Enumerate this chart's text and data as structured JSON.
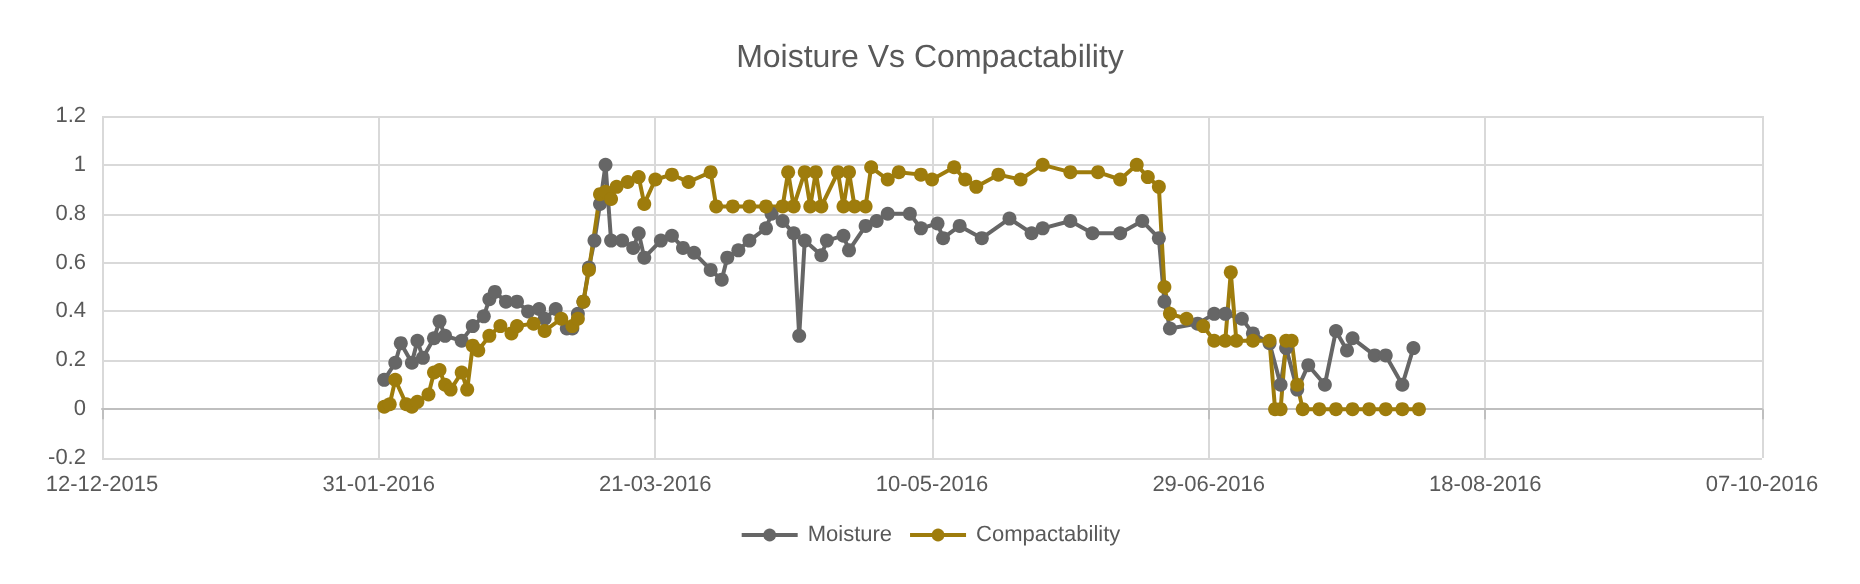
{
  "chart_data": {
    "type": "line",
    "title": "Moisture Vs Compactability",
    "marker": "circle",
    "line_style": "solid",
    "grid": true,
    "legend": "bottom",
    "xlim": [
      "2015-12-12",
      "2016-10-07"
    ],
    "xticks": [
      {
        "value": "2015-12-12",
        "label": "12-12-2015"
      },
      {
        "value": "2016-01-31",
        "label": "31-01-2016"
      },
      {
        "value": "2016-03-21",
        "label": "21-03-2016"
      },
      {
        "value": "2016-05-10",
        "label": "10-05-2016"
      },
      {
        "value": "2016-06-29",
        "label": "29-06-2016"
      },
      {
        "value": "2016-08-18",
        "label": "18-08-2016"
      },
      {
        "value": "2016-10-07",
        "label": "07-10-2016"
      }
    ],
    "ylim": [
      -0.2,
      1.2
    ],
    "yticks": [
      -0.2,
      0,
      0.2,
      0.4,
      0.6,
      0.8,
      1,
      1.2
    ],
    "series": [
      {
        "name": "Moisture",
        "color": "#666666",
        "x": [
          "2016-02-01",
          "2016-02-03",
          "2016-02-04",
          "2016-02-06",
          "2016-02-07",
          "2016-02-08",
          "2016-02-10",
          "2016-02-11",
          "2016-02-12",
          "2016-02-15",
          "2016-02-17",
          "2016-02-19",
          "2016-02-20",
          "2016-02-21",
          "2016-02-23",
          "2016-02-25",
          "2016-02-27",
          "2016-02-29",
          "2016-03-01",
          "2016-03-03",
          "2016-03-05",
          "2016-03-06",
          "2016-03-07",
          "2016-03-08",
          "2016-03-09",
          "2016-03-10",
          "2016-03-11",
          "2016-03-12",
          "2016-03-13",
          "2016-03-15",
          "2016-03-17",
          "2016-03-18",
          "2016-03-19",
          "2016-03-22",
          "2016-03-24",
          "2016-03-26",
          "2016-03-28",
          "2016-03-31",
          "2016-04-02",
          "2016-04-03",
          "2016-04-05",
          "2016-04-07",
          "2016-04-10",
          "2016-04-11",
          "2016-04-13",
          "2016-04-15",
          "2016-04-16",
          "2016-04-17",
          "2016-04-20",
          "2016-04-21",
          "2016-04-24",
          "2016-04-25",
          "2016-04-28",
          "2016-04-30",
          "2016-05-02",
          "2016-05-06",
          "2016-05-08",
          "2016-05-11",
          "2016-05-12",
          "2016-05-15",
          "2016-05-19",
          "2016-05-24",
          "2016-05-28",
          "2016-05-30",
          "2016-06-04",
          "2016-06-08",
          "2016-06-13",
          "2016-06-17",
          "2016-06-20",
          "2016-06-21",
          "2016-06-22",
          "2016-06-27",
          "2016-06-30",
          "2016-07-02",
          "2016-07-05",
          "2016-07-07",
          "2016-07-10",
          "2016-07-12",
          "2016-07-13",
          "2016-07-15",
          "2016-07-17",
          "2016-07-20",
          "2016-07-22",
          "2016-07-24",
          "2016-07-25",
          "2016-07-29",
          "2016-07-31",
          "2016-08-03",
          "2016-08-05"
        ],
        "values": [
          0.12,
          0.19,
          0.27,
          0.19,
          0.28,
          0.21,
          0.29,
          0.36,
          0.3,
          0.28,
          0.34,
          0.38,
          0.45,
          0.48,
          0.44,
          0.44,
          0.4,
          0.41,
          0.37,
          0.41,
          0.33,
          0.33,
          0.39,
          0.44,
          0.58,
          0.69,
          0.84,
          1.0,
          0.69,
          0.69,
          0.66,
          0.72,
          0.62,
          0.69,
          0.71,
          0.66,
          0.64,
          0.57,
          0.53,
          0.62,
          0.65,
          0.69,
          0.74,
          0.8,
          0.77,
          0.72,
          0.3,
          0.69,
          0.63,
          0.69,
          0.71,
          0.65,
          0.75,
          0.77,
          0.8,
          0.8,
          0.74,
          0.76,
          0.7,
          0.75,
          0.7,
          0.78,
          0.72,
          0.74,
          0.77,
          0.72,
          0.72,
          0.77,
          0.7,
          0.44,
          0.33,
          0.35,
          0.39,
          0.39,
          0.37,
          0.31,
          0.27,
          0.1,
          0.25,
          0.08,
          0.18,
          0.1,
          0.32,
          0.24,
          0.29,
          0.22,
          0.22,
          0.1,
          0.25
        ]
      },
      {
        "name": "Compactability",
        "color": "#9e7c0c",
        "x": [
          "2016-02-01",
          "2016-02-02",
          "2016-02-03",
          "2016-02-05",
          "2016-02-06",
          "2016-02-07",
          "2016-02-09",
          "2016-02-10",
          "2016-02-11",
          "2016-02-12",
          "2016-02-13",
          "2016-02-15",
          "2016-02-16",
          "2016-02-17",
          "2016-02-18",
          "2016-02-20",
          "2016-02-22",
          "2016-02-24",
          "2016-02-25",
          "2016-02-28",
          "2016-03-01",
          "2016-03-04",
          "2016-03-06",
          "2016-03-07",
          "2016-03-08",
          "2016-03-09",
          "2016-03-11",
          "2016-03-12",
          "2016-03-13",
          "2016-03-14",
          "2016-03-16",
          "2016-03-18",
          "2016-03-19",
          "2016-03-21",
          "2016-03-24",
          "2016-03-27",
          "2016-03-31",
          "2016-04-01",
          "2016-04-04",
          "2016-04-07",
          "2016-04-10",
          "2016-04-13",
          "2016-04-14",
          "2016-04-15",
          "2016-04-17",
          "2016-04-18",
          "2016-04-19",
          "2016-04-20",
          "2016-04-23",
          "2016-04-24",
          "2016-04-25",
          "2016-04-26",
          "2016-04-28",
          "2016-04-29",
          "2016-05-02",
          "2016-05-04",
          "2016-05-08",
          "2016-05-10",
          "2016-05-14",
          "2016-05-16",
          "2016-05-18",
          "2016-05-22",
          "2016-05-26",
          "2016-05-30",
          "2016-06-04",
          "2016-06-09",
          "2016-06-13",
          "2016-06-16",
          "2016-06-18",
          "2016-06-20",
          "2016-06-21",
          "2016-06-22",
          "2016-06-25",
          "2016-06-28",
          "2016-06-30",
          "2016-07-02",
          "2016-07-03",
          "2016-07-04",
          "2016-07-07",
          "2016-07-10",
          "2016-07-11",
          "2016-07-12",
          "2016-07-13",
          "2016-07-14",
          "2016-07-15",
          "2016-07-16",
          "2016-07-19",
          "2016-07-22",
          "2016-07-25",
          "2016-07-28",
          "2016-07-31",
          "2016-08-03",
          "2016-08-06"
        ],
        "values": [
          0.01,
          0.02,
          0.12,
          0.02,
          0.01,
          0.03,
          0.06,
          0.15,
          0.16,
          0.1,
          0.08,
          0.15,
          0.08,
          0.26,
          0.24,
          0.3,
          0.34,
          0.31,
          0.34,
          0.35,
          0.32,
          0.37,
          0.34,
          0.37,
          0.44,
          0.57,
          0.88,
          0.89,
          0.86,
          0.91,
          0.93,
          0.95,
          0.84,
          0.94,
          0.96,
          0.93,
          0.97,
          0.83,
          0.83,
          0.83,
          0.83,
          0.83,
          0.97,
          0.83,
          0.97,
          0.83,
          0.97,
          0.83,
          0.97,
          0.83,
          0.97,
          0.83,
          0.83,
          0.99,
          0.94,
          0.97,
          0.96,
          0.94,
          0.99,
          0.94,
          0.91,
          0.96,
          0.94,
          1.0,
          0.97,
          0.97,
          0.94,
          1.0,
          0.95,
          0.91,
          0.5,
          0.39,
          0.37,
          0.34,
          0.28,
          0.28,
          0.56,
          0.28,
          0.28,
          0.28,
          0,
          0,
          0.28,
          0.28,
          0.1,
          0,
          0,
          0,
          0,
          0,
          0,
          0,
          0
        ]
      }
    ]
  }
}
